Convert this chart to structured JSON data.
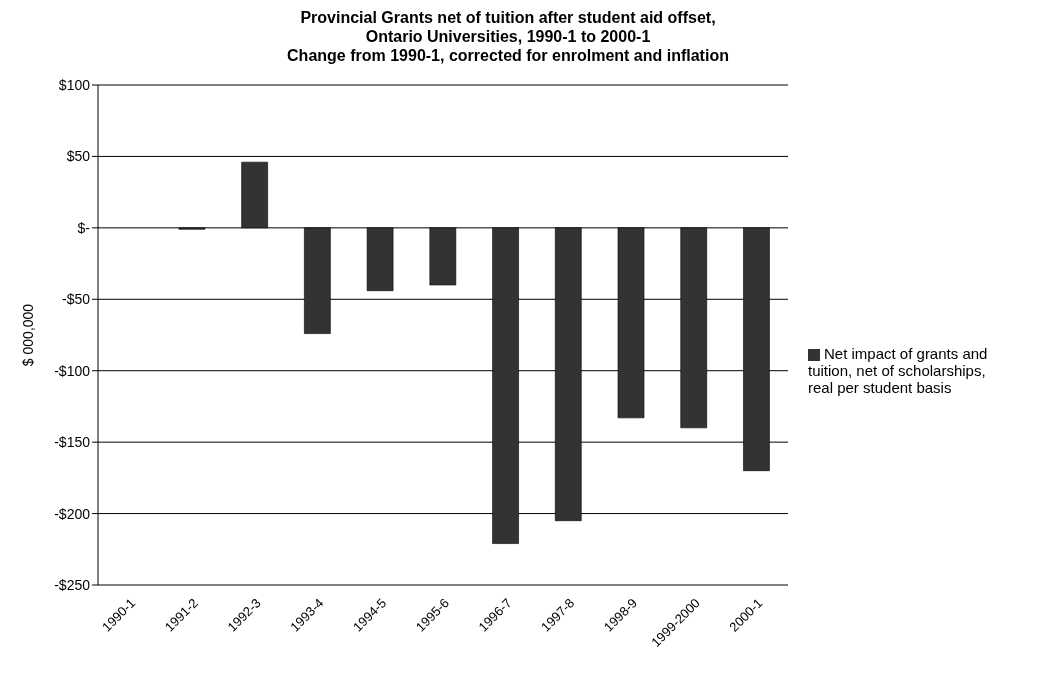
{
  "chart_data": {
    "type": "bar",
    "title": "Provincial Grants net of tuition after student aid offset,\nOntario Universities, 1990-1 to 2000-1\nChange from 1990-1, corrected for enrolment and inflation",
    "ylabel": "$ 000,000",
    "categories": [
      "1990-1",
      "1991-2",
      "1992-3",
      "1993-4",
      "1994-5",
      "1995-6",
      "1996-7",
      "1997-8",
      "1998-9",
      "1999-2000",
      "2000-1"
    ],
    "series": [
      {
        "name": "Net impact of grants and tuition, net of scholarships, real per student basis",
        "color": "#333333",
        "values": [
          0,
          -1,
          46,
          -74,
          -44,
          -40,
          -221,
          -205,
          -133,
          -140,
          -170
        ]
      }
    ],
    "ylim": [
      -250,
      100
    ],
    "yticks": [
      {
        "value": -250,
        "label": "-$250"
      },
      {
        "value": -200,
        "label": "-$200"
      },
      {
        "value": -150,
        "label": "-$150"
      },
      {
        "value": -100,
        "label": "-$100"
      },
      {
        "value": -50,
        "label": "-$50"
      },
      {
        "value": 0,
        "label": "$-"
      },
      {
        "value": 50,
        "label": "$50"
      },
      {
        "value": 100,
        "label": "$100"
      }
    ],
    "grid": "y",
    "legend": "right"
  }
}
